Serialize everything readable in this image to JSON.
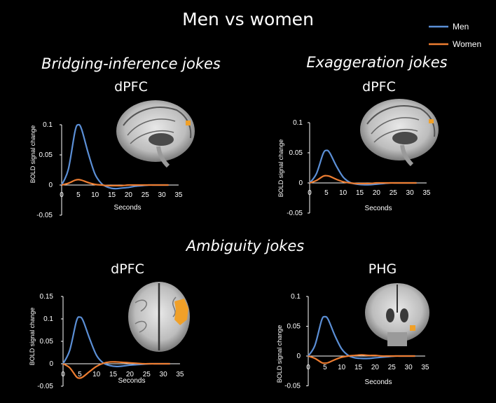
{
  "title": "Men vs women",
  "legend": [
    {
      "name": "Men",
      "color": "#5b8fd6"
    },
    {
      "name": "Women",
      "color": "#ed7d31"
    }
  ],
  "sections": {
    "bridging": "Bridging-inference jokes",
    "exaggeration": "Exaggeration jokes",
    "ambiguity": "Ambiguity jokes"
  },
  "brain_images": [
    {
      "panel": "bridging-dpfc",
      "view": "sagittal",
      "icon": "brain-sagittal-icon"
    },
    {
      "panel": "exaggeration-dpfc",
      "view": "sagittal",
      "icon": "brain-sagittal-icon"
    },
    {
      "panel": "ambiguity-dpfc",
      "view": "axial",
      "icon": "brain-axial-icon"
    },
    {
      "panel": "ambiguity-phg",
      "view": "coronal",
      "icon": "brain-coronal-icon"
    }
  ],
  "chart_data": [
    {
      "type": "line",
      "title": "dPFC",
      "xlabel": "Seconds",
      "ylabel": "BOLD signal change",
      "xticks": [
        "0",
        "5",
        "10",
        "15",
        "20",
        "25",
        "30",
        "35"
      ],
      "yticks": [
        "0.1",
        "0.05",
        "0",
        "-0.05"
      ],
      "xlim": [
        0,
        35
      ],
      "ylim": [
        -0.05,
        0.1
      ],
      "grid": false,
      "series": [
        {
          "name": "Men",
          "x": [
            0,
            2,
            4,
            5,
            6,
            8,
            10,
            12,
            14,
            16,
            18,
            20,
            22,
            24,
            26,
            28,
            30,
            32
          ],
          "y": [
            0,
            0.026,
            0.089,
            0.1,
            0.092,
            0.052,
            0.018,
            0.002,
            -0.004,
            -0.006,
            -0.005,
            -0.004,
            -0.002,
            -0.001,
            0,
            0,
            0,
            0
          ]
        },
        {
          "name": "Women",
          "x": [
            0,
            2,
            4,
            5,
            6,
            8,
            10,
            12,
            14,
            16,
            18,
            20,
            22,
            24,
            26,
            28,
            30,
            32
          ],
          "y": [
            0,
            0.003,
            0.008,
            0.009,
            0.008,
            0.004,
            0.001,
            0,
            -0.001,
            -0.001,
            -0.001,
            0,
            0,
            0,
            0,
            0,
            0,
            0
          ]
        }
      ]
    },
    {
      "type": "line",
      "title": "dPFC",
      "xlabel": "Seconds",
      "ylabel": "BOLD signal change",
      "xticks": [
        "0",
        "5",
        "10",
        "15",
        "20",
        "25",
        "30",
        "35"
      ],
      "yticks": [
        "0.1",
        "0.05",
        "0",
        "-0.05"
      ],
      "xlim": [
        0,
        35
      ],
      "ylim": [
        -0.05,
        0.1
      ],
      "grid": false,
      "series": [
        {
          "name": "Men",
          "x": [
            0,
            2,
            4,
            5,
            6,
            8,
            10,
            12,
            14,
            16,
            18,
            20,
            22,
            24,
            26,
            28,
            30,
            32
          ],
          "y": [
            0,
            0.015,
            0.048,
            0.054,
            0.05,
            0.028,
            0.01,
            0.001,
            -0.002,
            -0.003,
            -0.003,
            -0.002,
            -0.001,
            0,
            0,
            0,
            0,
            0
          ]
        },
        {
          "name": "Women",
          "x": [
            0,
            2,
            4,
            5,
            6,
            8,
            10,
            12,
            14,
            16,
            18,
            20,
            22,
            24,
            26,
            28,
            30,
            32
          ],
          "y": [
            0,
            0.004,
            0.011,
            0.012,
            0.011,
            0.006,
            0.002,
            0,
            -0.001,
            -0.001,
            -0.001,
            0,
            0,
            0,
            0,
            0,
            0,
            0
          ]
        }
      ]
    },
    {
      "type": "line",
      "title": "dPFC",
      "xlabel": "Seconds",
      "ylabel": "BOLD signal change",
      "xticks": [
        "0",
        "5",
        "10",
        "15",
        "20",
        "25",
        "30",
        "35"
      ],
      "yticks": [
        "0.15",
        "0.1",
        "0.05",
        "0",
        "-0.05"
      ],
      "xlim": [
        0,
        35
      ],
      "ylim": [
        -0.05,
        0.15
      ],
      "grid": false,
      "series": [
        {
          "name": "Men",
          "x": [
            0,
            2,
            4,
            5,
            6,
            8,
            10,
            12,
            14,
            16,
            18,
            20,
            22,
            24,
            26,
            28,
            30,
            32
          ],
          "y": [
            0,
            0.03,
            0.095,
            0.104,
            0.096,
            0.055,
            0.019,
            0.002,
            -0.004,
            -0.006,
            -0.005,
            -0.003,
            -0.002,
            -0.001,
            0,
            0,
            0,
            0
          ]
        },
        {
          "name": "Women",
          "x": [
            0,
            2,
            4,
            5,
            6,
            8,
            10,
            12,
            14,
            16,
            18,
            20,
            22,
            24,
            26,
            28,
            30,
            32
          ],
          "y": [
            0,
            -0.009,
            -0.029,
            -0.032,
            -0.029,
            -0.017,
            -0.006,
            0.001,
            0.004,
            0.004,
            0.003,
            0.002,
            0.001,
            0,
            0,
            0,
            0,
            0
          ]
        }
      ]
    },
    {
      "type": "line",
      "title": "PHG",
      "xlabel": "Seconds",
      "ylabel": "BOLD signal change",
      "xticks": [
        "0",
        "5",
        "10",
        "15",
        "20",
        "25",
        "30",
        "35"
      ],
      "yticks": [
        "0.1",
        "0.05",
        "0",
        "-0.05"
      ],
      "xlim": [
        0,
        35
      ],
      "ylim": [
        -0.05,
        0.1
      ],
      "grid": false,
      "series": [
        {
          "name": "Men",
          "x": [
            0,
            2,
            4,
            5,
            6,
            8,
            10,
            12,
            14,
            16,
            18,
            20,
            22,
            24,
            26,
            28,
            30,
            32
          ],
          "y": [
            0,
            0.018,
            0.06,
            0.066,
            0.061,
            0.034,
            0.012,
            0.001,
            -0.003,
            -0.004,
            -0.004,
            -0.003,
            -0.002,
            -0.001,
            0,
            0,
            0,
            0
          ]
        },
        {
          "name": "Women",
          "x": [
            0,
            2,
            4,
            5,
            6,
            8,
            10,
            12,
            14,
            16,
            18,
            20,
            22,
            24,
            26,
            28,
            30,
            32
          ],
          "y": [
            0,
            -0.004,
            -0.011,
            -0.012,
            -0.011,
            -0.006,
            -0.002,
            0,
            0.001,
            0.002,
            0.001,
            0.001,
            0,
            0,
            0,
            0,
            0,
            0
          ]
        }
      ]
    }
  ]
}
